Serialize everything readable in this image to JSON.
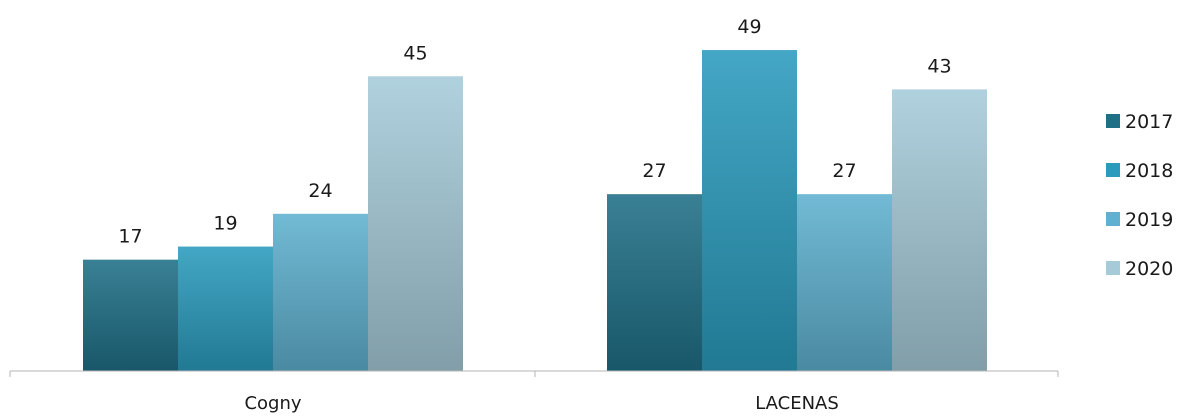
{
  "chart_data": {
    "type": "bar",
    "categories": [
      "Cogny",
      "LACENAS"
    ],
    "series": [
      {
        "name": "2017",
        "values": [
          17,
          27
        ],
        "color": "#1f6f86"
      },
      {
        "name": "2018",
        "values": [
          19,
          49
        ],
        "color": "#2a9bbd"
      },
      {
        "name": "2019",
        "values": [
          24,
          27
        ],
        "color": "#5fb1cf"
      },
      {
        "name": "2020",
        "values": [
          45,
          43
        ],
        "color": "#a5cbd9"
      }
    ],
    "title": "",
    "xlabel": "",
    "ylabel": "",
    "ylim": [
      0,
      55
    ],
    "grid": false,
    "legend_position": "right",
    "data_labels": true
  }
}
